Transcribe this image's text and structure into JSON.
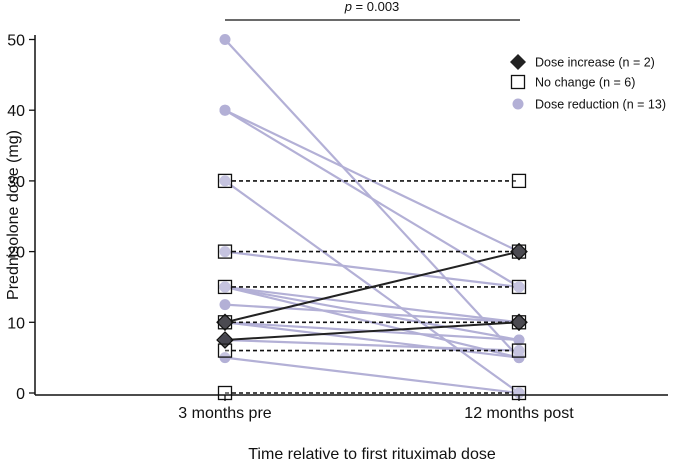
{
  "chart_data": {
    "type": "line",
    "title": "",
    "xlabel": "Time relative to first rituximab dose",
    "ylabel": "Prednisolone dose (mg)",
    "categories": [
      "3 months pre",
      "12 months post"
    ],
    "ylim": [
      0,
      50
    ],
    "yticks": [
      0,
      10,
      20,
      30,
      40,
      50
    ],
    "significance": {
      "p_italic": "p",
      "p_value": "= 0.003"
    },
    "legend": {
      "position": "top-right",
      "entries": [
        {
          "key": "increase",
          "label": "Dose increase (n = 2)"
        },
        {
          "key": "nochange",
          "label": "No change (n = 6)"
        },
        {
          "key": "reduction",
          "label": "Dose reduction (n = 13)"
        }
      ]
    },
    "series": [
      {
        "group": "reduction",
        "values": [
          50,
          5
        ]
      },
      {
        "group": "reduction",
        "values": [
          40,
          20
        ]
      },
      {
        "group": "reduction",
        "values": [
          40,
          15
        ]
      },
      {
        "group": "reduction",
        "values": [
          30,
          0
        ]
      },
      {
        "group": "reduction",
        "values": [
          20,
          15
        ]
      },
      {
        "group": "reduction",
        "values": [
          15,
          10
        ]
      },
      {
        "group": "reduction",
        "values": [
          15,
          7.5
        ]
      },
      {
        "group": "reduction",
        "values": [
          15,
          5
        ]
      },
      {
        "group": "reduction",
        "values": [
          12.5,
          10
        ]
      },
      {
        "group": "reduction",
        "values": [
          10,
          7.5
        ]
      },
      {
        "group": "reduction",
        "values": [
          10,
          5
        ]
      },
      {
        "group": "reduction",
        "values": [
          7.5,
          6
        ]
      },
      {
        "group": "reduction",
        "values": [
          5,
          0
        ]
      },
      {
        "group": "nochange",
        "values": [
          30,
          30
        ]
      },
      {
        "group": "nochange",
        "values": [
          20,
          20
        ]
      },
      {
        "group": "nochange",
        "values": [
          15,
          15
        ]
      },
      {
        "group": "nochange",
        "values": [
          10,
          10
        ]
      },
      {
        "group": "nochange",
        "values": [
          6,
          6
        ]
      },
      {
        "group": "nochange",
        "values": [
          0,
          0
        ]
      },
      {
        "group": "increase",
        "values": [
          10,
          20
        ]
      },
      {
        "group": "increase",
        "values": [
          7.5,
          10
        ]
      }
    ],
    "colors": {
      "reduction": "#b3b0d6",
      "increase": "#222222",
      "nochange": "#111111",
      "axis": "#111111"
    }
  }
}
